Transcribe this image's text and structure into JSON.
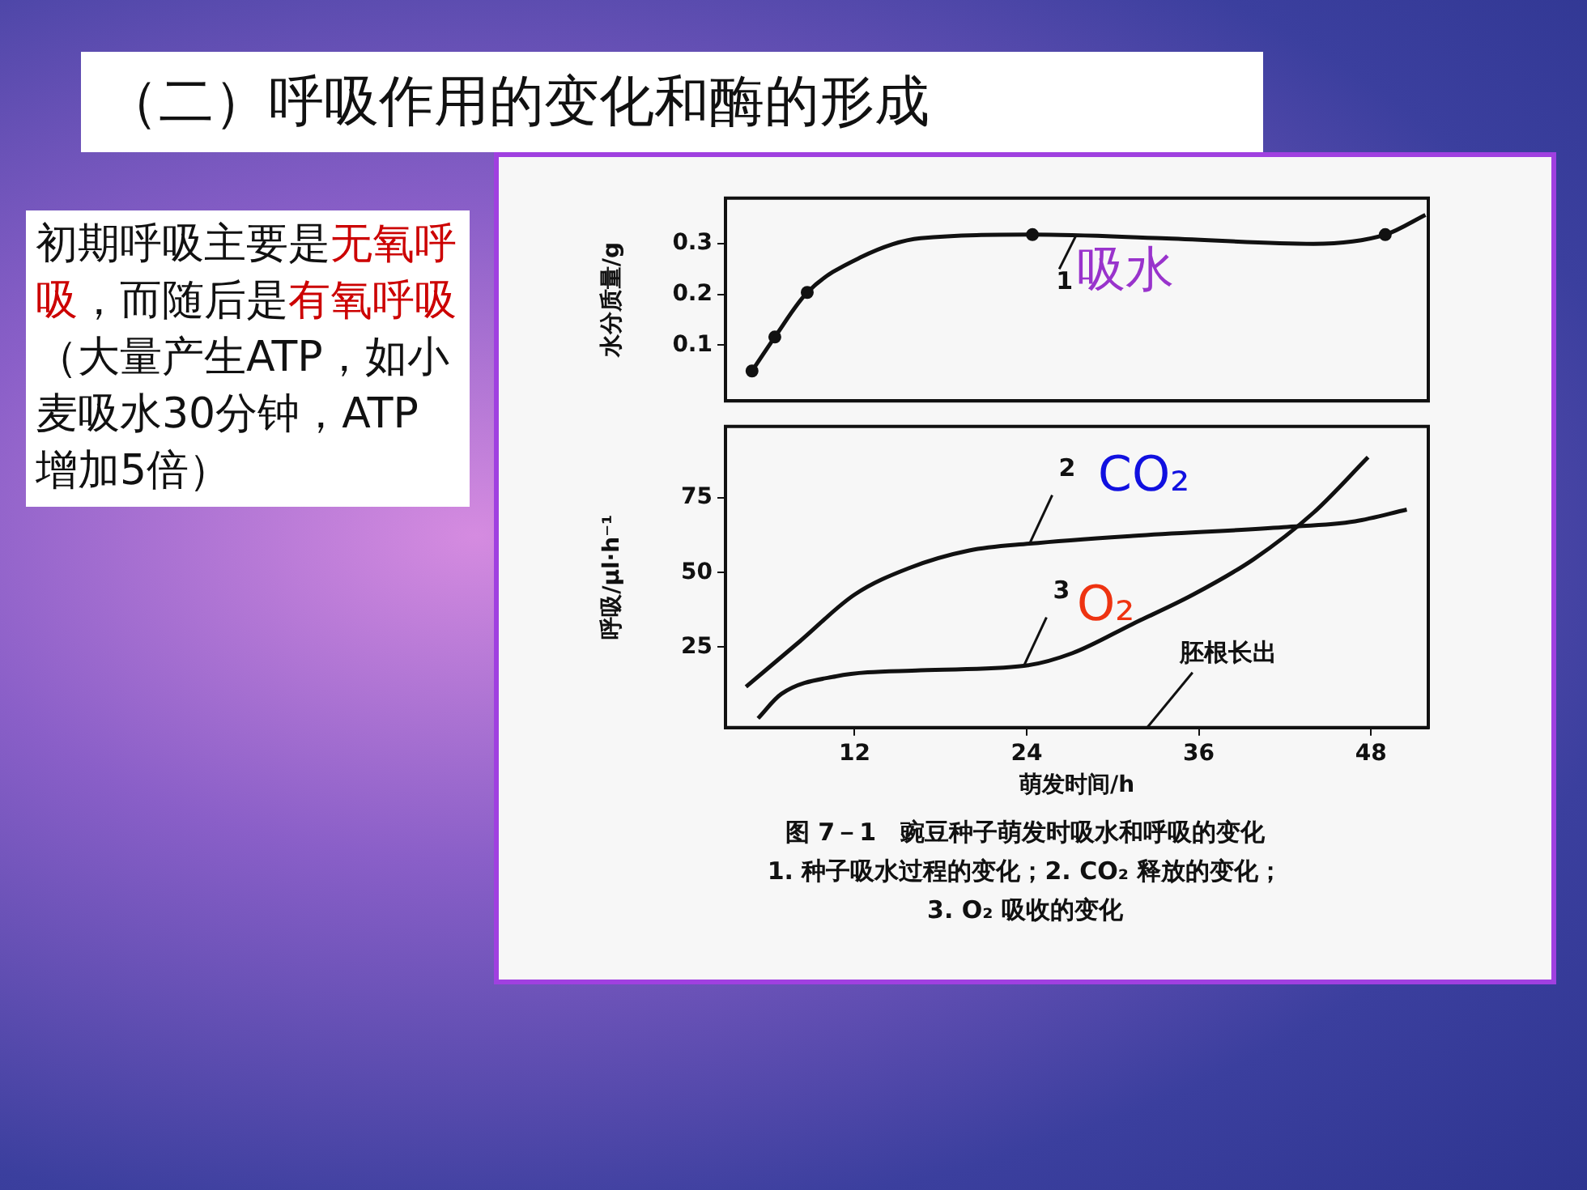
{
  "chart_data": [
    {
      "type": "line",
      "title": "（二）呼吸作用的变化和酶的形成",
      "ylabel": "水分质量/g",
      "xlim": [
        3,
        52
      ],
      "ylim": [
        -0.01,
        0.39
      ],
      "yticks": [
        0.1,
        0.2,
        0.3
      ],
      "tick_labels": "y",
      "grid": false,
      "legend": "top right",
      "series": [
        {
          "type": "line",
          "name": "吸水",
          "color": "#111111",
          "marker": "none",
          "x": [
            4.85,
            6.44,
            8.7,
            12.4,
            16.6,
            24.4,
            33.4,
            44,
            49,
            51.8
          ],
          "values": [
            0.049,
            0.116,
            0.204,
            0.273,
            0.311,
            0.318,
            0.311,
            0.3,
            0.318,
            0.357
          ]
        },
        {
          "type": "scatter",
          "color": "#111111",
          "marker": "circle",
          "x": [
            4.85,
            6.44,
            8.7,
            24.4,
            49
          ],
          "values": [
            0.049,
            0.116,
            0.204,
            0.318,
            0.318
          ]
        }
      ],
      "annotations": [
        {
          "text": "1",
          "x": 27.4,
          "y": 0.314
        }
      ]
    },
    {
      "type": "line",
      "xlabel": "萌发时间/h",
      "ylabel": "呼吸/μl·h⁻¹",
      "xlim": [
        3,
        52
      ],
      "ylim": [
        -2,
        99
      ],
      "xticks": [
        12,
        24,
        36,
        48
      ],
      "yticks": [
        25,
        50,
        75
      ],
      "grid": false,
      "legend": "top",
      "marker": "none",
      "series": [
        {
          "name": "CO₂",
          "color": "#111111",
          "x": [
            4.43,
            8.2,
            12,
            15.8,
            20,
            24.2,
            31.4,
            41.9,
            46.9,
            50.5
          ],
          "values": [
            11.7,
            27,
            42.6,
            51.5,
            57.4,
            59.7,
            62.3,
            65.2,
            67.2,
            71.1
          ]
        },
        {
          "name": "O₂",
          "color": "#111111",
          "x": [
            5.27,
            6.9,
            10.7,
            16.6,
            23.8,
            27.2,
            31.4,
            35.6,
            39.8,
            44,
            47.8
          ],
          "values": [
            1.1,
            9.3,
            15.2,
            17.2,
            18.7,
            23,
            32.8,
            42.6,
            54.4,
            70.1,
            88.7
          ]
        }
      ],
      "annotations": [
        {
          "text": "2",
          "x": 24.2,
          "y": 59.7
        },
        {
          "text": "3",
          "x": 23.8,
          "y": 18.7
        },
        "胚根长出",
        "图 7－1　豌豆种子萌发时吸水和呼吸的变化",
        "1. 种子吸水过程的变化；2. CO₂ 释放的变化；",
        "3. O₂ 吸收的变化"
      ]
    },
    {
      "type": "other",
      "annotations": [
        "初期呼吸主要是",
        "无氧呼吸",
        "，而随后是",
        "有氧呼吸",
        "（大量产生ATP，如小麦吸水30分钟，ATP增加5倍）"
      ],
      "colors": [
        "#111111",
        "#cc0000",
        "#111111",
        "#cc0000",
        "#111111"
      ]
    }
  ]
}
